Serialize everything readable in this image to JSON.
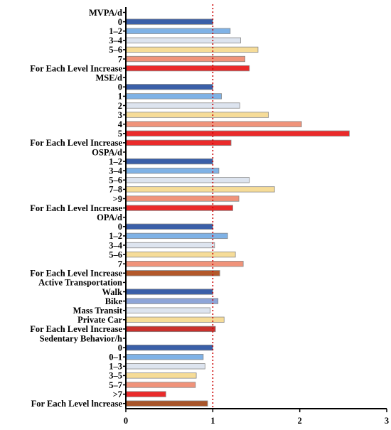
{
  "chart_data": {
    "type": "bar",
    "orientation": "horizontal",
    "xlim": [
      0,
      3
    ],
    "xticks": [
      "0",
      "1",
      "2",
      "3"
    ],
    "reference_line": 1,
    "rows": [
      {
        "label": "MVPA/d",
        "header": true
      },
      {
        "label": "0",
        "value": 1.0,
        "color": "#3a5fa8"
      },
      {
        "label": "1–2",
        "value": 1.2,
        "color": "#7fb2e6"
      },
      {
        "label": "3–4",
        "value": 1.32,
        "color": "#dde4ef"
      },
      {
        "label": "5–6",
        "value": 1.52,
        "color": "#f6dc98"
      },
      {
        "label": "7",
        "value": 1.37,
        "color": "#f0937a"
      },
      {
        "label": "For Each Level Increase",
        "value": 1.42,
        "color": "#ea2a2a"
      },
      {
        "label": "MSE/d",
        "header": true
      },
      {
        "label": "0",
        "value": 1.0,
        "color": "#3a5fa8"
      },
      {
        "label": "1",
        "value": 1.1,
        "color": "#7fb2e6"
      },
      {
        "label": "2",
        "value": 1.31,
        "color": "#dde4ef"
      },
      {
        "label": "3",
        "value": 1.64,
        "color": "#f6dc98"
      },
      {
        "label": "4",
        "value": 2.02,
        "color": "#f0937a"
      },
      {
        "label": "5",
        "value": 2.57,
        "color": "#ea2a2a"
      },
      {
        "label": "For Each Level Increase",
        "value": 1.21,
        "color": "#ea2a2a"
      },
      {
        "label": "OSPA/d",
        "header": true
      },
      {
        "label": "1–2",
        "value": 1.0,
        "color": "#3a5fa8"
      },
      {
        "label": "3–4",
        "value": 1.07,
        "color": "#7fb2e6"
      },
      {
        "label": "5–6",
        "value": 1.42,
        "color": "#dde4ef"
      },
      {
        "label": "7–8",
        "value": 1.71,
        "color": "#f6dc98"
      },
      {
        "label": ">9",
        "value": 1.3,
        "color": "#f0937a"
      },
      {
        "label": "For Each Level Increase",
        "value": 1.23,
        "color": "#ea2a2a"
      },
      {
        "label": "OPA/d",
        "header": true
      },
      {
        "label": "0",
        "value": 1.0,
        "color": "#3a5fa8"
      },
      {
        "label": "1–2",
        "value": 1.17,
        "color": "#7fb2e6"
      },
      {
        "label": "3–4",
        "value": 1.02,
        "color": "#dde4ef"
      },
      {
        "label": "5–6",
        "value": 1.26,
        "color": "#f6dc98"
      },
      {
        "label": "7",
        "value": 1.35,
        "color": "#f0937a"
      },
      {
        "label": "For Each Level Increase",
        "value": 1.08,
        "color": "#b3582a"
      },
      {
        "label": "Active Transportation",
        "header": true
      },
      {
        "label": "Walk",
        "value": 1.0,
        "color": "#3a5fa8"
      },
      {
        "label": "Bike",
        "value": 1.06,
        "color": "#8ea5d8"
      },
      {
        "label": "Mass Transit",
        "value": 0.97,
        "color": "#dde4ef"
      },
      {
        "label": "Private Car",
        "value": 1.13,
        "color": "#f6dc98"
      },
      {
        "label": "For Each Level Increase",
        "value": 1.03,
        "color": "#c9302c"
      },
      {
        "label": "Sedentary Behavior/h",
        "header": true
      },
      {
        "label": "0",
        "value": 1.0,
        "color": "#3a5fa8"
      },
      {
        "label": "0–1",
        "value": 0.89,
        "color": "#7fb2e6"
      },
      {
        "label": "1–3",
        "value": 0.91,
        "color": "#dde4ef"
      },
      {
        "label": "3–5",
        "value": 0.81,
        "color": "#f6dc98"
      },
      {
        "label": "5–7",
        "value": 0.8,
        "color": "#f0937a"
      },
      {
        "label": ">7",
        "value": 0.46,
        "color": "#ea2a2a"
      },
      {
        "label": "For Each Level lncrease",
        "value": 0.94,
        "color": "#a8552a"
      }
    ],
    "grid": false,
    "colors": {
      "axis": "#000000",
      "reference_line": "#cc0000",
      "bar_edge": "#888888"
    }
  }
}
